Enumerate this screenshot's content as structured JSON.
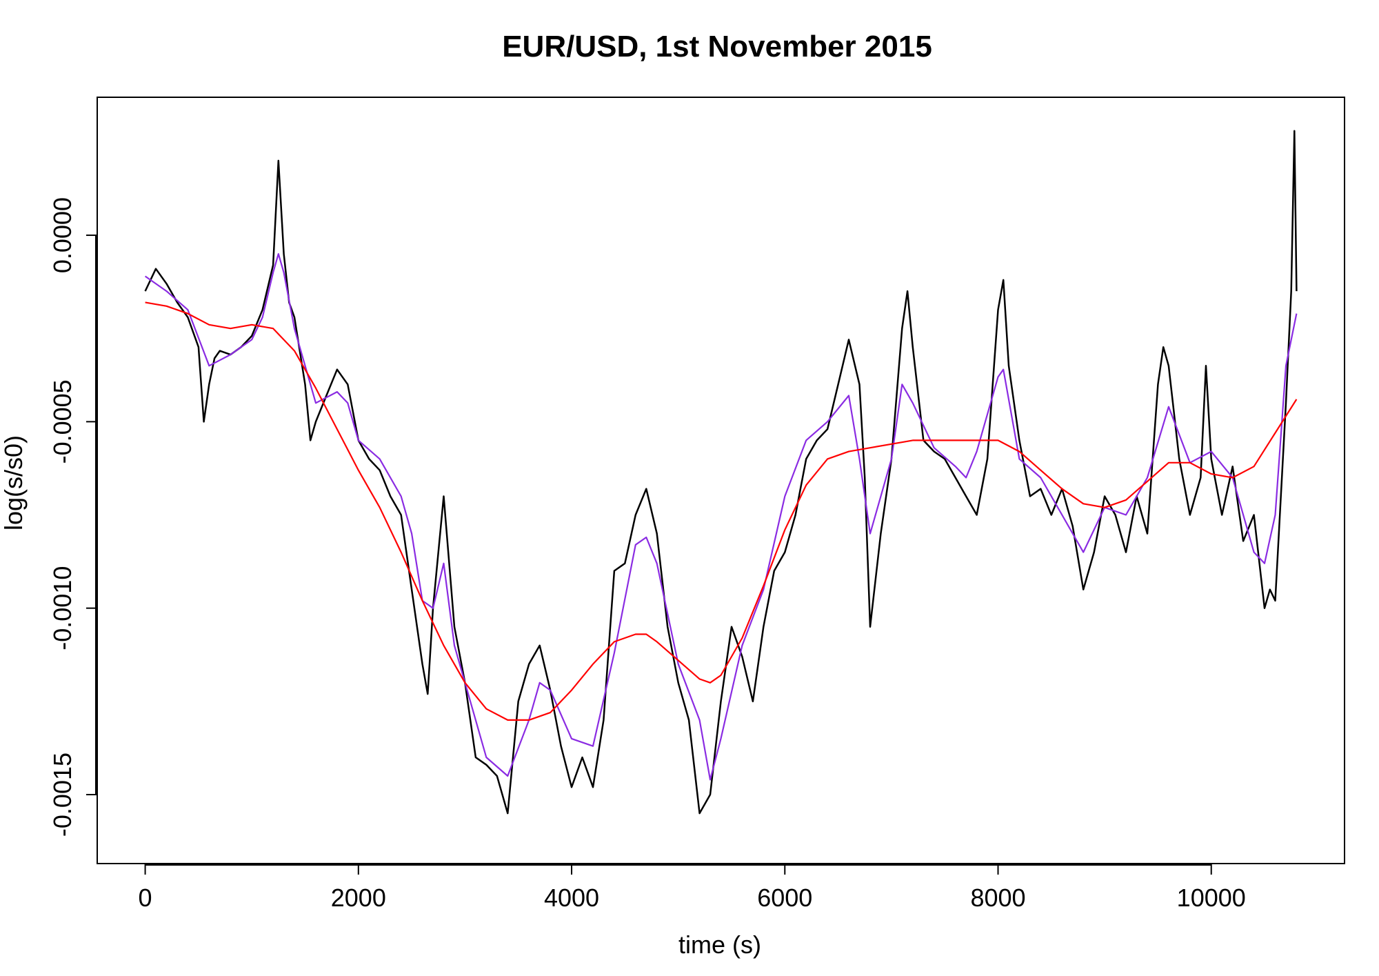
{
  "chart_data": {
    "type": "line",
    "title": "EUR/USD, 1st November 2015",
    "xlabel": "time (s)",
    "ylabel": "log(s/s0)",
    "xlim": [
      -450,
      11250
    ],
    "ylim": [
      -0.0016849,
      0.00037
    ],
    "xticks": [
      0,
      2000,
      4000,
      6000,
      8000,
      10000
    ],
    "xtick_labels": [
      "0",
      "2000",
      "4000",
      "6000",
      "8000",
      "10000"
    ],
    "yticks": [
      0.0,
      -0.0005,
      -0.001,
      -0.0015
    ],
    "ytick_labels": [
      "0.0000",
      "-0.0005",
      "-0.0010",
      "-0.0015"
    ],
    "grid": false,
    "series": [
      {
        "color": "#000000",
        "x": [
          0,
          100,
          200,
          300,
          400,
          500,
          550,
          600,
          650,
          700,
          800,
          900,
          1000,
          1100,
          1200,
          1250,
          1300,
          1350,
          1400,
          1500,
          1550,
          1600,
          1700,
          1800,
          1900,
          2000,
          2100,
          2200,
          2300,
          2400,
          2500,
          2600,
          2650,
          2700,
          2800,
          2900,
          3000,
          3100,
          3200,
          3300,
          3400,
          3500,
          3600,
          3700,
          3800,
          3900,
          4000,
          4100,
          4200,
          4300,
          4400,
          4500,
          4600,
          4700,
          4800,
          4900,
          5000,
          5100,
          5200,
          5300,
          5400,
          5500,
          5600,
          5700,
          5800,
          5900,
          6000,
          6100,
          6200,
          6300,
          6400,
          6500,
          6600,
          6700,
          6750,
          6800,
          6900,
          7000,
          7100,
          7150,
          7200,
          7300,
          7400,
          7500,
          7600,
          7700,
          7800,
          7900,
          8000,
          8050,
          8100,
          8200,
          8300,
          8400,
          8500,
          8600,
          8700,
          8800,
          8900,
          9000,
          9100,
          9200,
          9300,
          9400,
          9500,
          9550,
          9600,
          9700,
          9800,
          9900,
          9950,
          10000,
          10100,
          10200,
          10300,
          10400,
          10500,
          10550,
          10600,
          10700,
          10750,
          10780,
          10800
        ],
        "y": [
          -0.00015,
          -9e-05,
          -0.00013,
          -0.00018,
          -0.00022,
          -0.0003,
          -0.0005,
          -0.0004,
          -0.00033,
          -0.00031,
          -0.00032,
          -0.0003,
          -0.00027,
          -0.0002,
          -8e-05,
          0.0002,
          -5e-05,
          -0.00018,
          -0.00022,
          -0.0004,
          -0.00055,
          -0.0005,
          -0.00043,
          -0.00036,
          -0.0004,
          -0.00055,
          -0.0006,
          -0.00063,
          -0.0007,
          -0.00075,
          -0.00095,
          -0.00115,
          -0.00123,
          -0.001,
          -0.0007,
          -0.00105,
          -0.0012,
          -0.0014,
          -0.00142,
          -0.00145,
          -0.00155,
          -0.00125,
          -0.00115,
          -0.0011,
          -0.00122,
          -0.00137,
          -0.00148,
          -0.0014,
          -0.00148,
          -0.0013,
          -0.0009,
          -0.00088,
          -0.00075,
          -0.00068,
          -0.0008,
          -0.00105,
          -0.0012,
          -0.0013,
          -0.00155,
          -0.0015,
          -0.00125,
          -0.00105,
          -0.00113,
          -0.00125,
          -0.00105,
          -0.0009,
          -0.00085,
          -0.00075,
          -0.0006,
          -0.00055,
          -0.00052,
          -0.0004,
          -0.00028,
          -0.0004,
          -0.00065,
          -0.00105,
          -0.0008,
          -0.0006,
          -0.00025,
          -0.00015,
          -0.0003,
          -0.00055,
          -0.00058,
          -0.0006,
          -0.00065,
          -0.0007,
          -0.00075,
          -0.0006,
          -0.0002,
          -0.00012,
          -0.00035,
          -0.00055,
          -0.0007,
          -0.00068,
          -0.00075,
          -0.00068,
          -0.00078,
          -0.00095,
          -0.00085,
          -0.0007,
          -0.00075,
          -0.00085,
          -0.0007,
          -0.0008,
          -0.0004,
          -0.0003,
          -0.00035,
          -0.0006,
          -0.00075,
          -0.00065,
          -0.00035,
          -0.0006,
          -0.00075,
          -0.00062,
          -0.00082,
          -0.00075,
          -0.001,
          -0.00095,
          -0.00098,
          -0.00045,
          -0.00015,
          0.00028,
          -0.00015
        ]
      },
      {
        "color": "#8A2BE2",
        "x": [
          0,
          200,
          400,
          600,
          800,
          1000,
          1100,
          1200,
          1250,
          1300,
          1400,
          1600,
          1800,
          1900,
          2000,
          2200,
          2400,
          2500,
          2600,
          2700,
          2800,
          2900,
          3000,
          3200,
          3400,
          3600,
          3700,
          3800,
          4000,
          4200,
          4400,
          4600,
          4700,
          4800,
          5000,
          5200,
          5300,
          5400,
          5600,
          5800,
          6000,
          6200,
          6400,
          6600,
          6700,
          6800,
          7000,
          7100,
          7200,
          7400,
          7600,
          7700,
          7800,
          8000,
          8050,
          8200,
          8400,
          8600,
          8800,
          9000,
          9200,
          9400,
          9600,
          9800,
          10000,
          10200,
          10400,
          10500,
          10600,
          10700,
          10800
        ],
        "y": [
          -0.00011,
          -0.00015,
          -0.0002,
          -0.00035,
          -0.00032,
          -0.00028,
          -0.00022,
          -0.0001,
          -5e-05,
          -0.0001,
          -0.00025,
          -0.00045,
          -0.00042,
          -0.00045,
          -0.00055,
          -0.0006,
          -0.0007,
          -0.0008,
          -0.00098,
          -0.001,
          -0.00088,
          -0.0011,
          -0.0012,
          -0.0014,
          -0.00145,
          -0.0013,
          -0.0012,
          -0.00122,
          -0.00135,
          -0.00137,
          -0.00112,
          -0.00083,
          -0.00081,
          -0.00088,
          -0.00115,
          -0.0013,
          -0.00146,
          -0.00135,
          -0.0011,
          -0.00095,
          -0.0007,
          -0.00055,
          -0.0005,
          -0.00043,
          -0.0006,
          -0.0008,
          -0.0006,
          -0.0004,
          -0.00045,
          -0.00057,
          -0.00062,
          -0.00065,
          -0.00058,
          -0.00038,
          -0.00036,
          -0.0006,
          -0.00065,
          -0.00075,
          -0.00085,
          -0.00073,
          -0.00075,
          -0.00065,
          -0.00046,
          -0.00061,
          -0.00058,
          -0.00065,
          -0.00085,
          -0.00088,
          -0.00075,
          -0.00035,
          -0.00021
        ]
      },
      {
        "color": "#FF0000",
        "x": [
          0,
          200,
          400,
          600,
          800,
          1000,
          1200,
          1400,
          1600,
          1800,
          2000,
          2200,
          2400,
          2600,
          2800,
          3000,
          3200,
          3400,
          3600,
          3800,
          4000,
          4200,
          4400,
          4600,
          4700,
          4800,
          5000,
          5200,
          5300,
          5400,
          5600,
          5800,
          6000,
          6200,
          6400,
          6600,
          6800,
          7000,
          7200,
          7400,
          7600,
          7800,
          8000,
          8200,
          8400,
          8600,
          8800,
          9000,
          9200,
          9400,
          9600,
          9800,
          10000,
          10200,
          10400,
          10600,
          10800
        ],
        "y": [
          -0.00018,
          -0.00019,
          -0.00021,
          -0.00024,
          -0.00025,
          -0.00024,
          -0.00025,
          -0.00031,
          -0.00041,
          -0.00052,
          -0.00063,
          -0.00073,
          -0.00085,
          -0.00098,
          -0.0011,
          -0.0012,
          -0.00127,
          -0.0013,
          -0.0013,
          -0.00128,
          -0.00122,
          -0.00115,
          -0.00109,
          -0.00107,
          -0.00107,
          -0.00109,
          -0.00114,
          -0.00119,
          -0.0012,
          -0.00118,
          -0.00108,
          -0.00094,
          -0.00079,
          -0.00067,
          -0.0006,
          -0.00058,
          -0.00057,
          -0.00056,
          -0.00055,
          -0.00055,
          -0.00055,
          -0.00055,
          -0.00055,
          -0.00058,
          -0.00063,
          -0.00068,
          -0.00072,
          -0.00073,
          -0.00071,
          -0.00066,
          -0.00061,
          -0.00061,
          -0.00064,
          -0.00065,
          -0.00062,
          -0.00053,
          -0.00044
        ]
      }
    ]
  }
}
